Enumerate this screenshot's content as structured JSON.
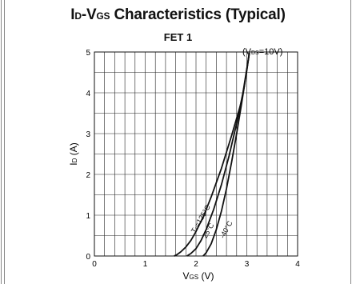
{
  "chart_data": {
    "type": "line",
    "title_parts": {
      "main_a": "I",
      "sub_a": "D",
      "main_b": "-V",
      "sub_b": "GS",
      "main_c": " Characteristics (Typical)"
    },
    "subtitle": "FET 1",
    "condition": {
      "prefix": "(V",
      "sub": "DS",
      "suffix": "=10V)"
    },
    "xlabel": {
      "main": "V",
      "sub": "GS",
      "suffix": "  (V)"
    },
    "ylabel": {
      "main": "I",
      "sub": "D",
      "suffix": "  (A)"
    },
    "xlim": [
      0,
      4
    ],
    "ylim": [
      0,
      5
    ],
    "x_ticks": [
      "0",
      "1",
      "2",
      "3",
      "4"
    ],
    "y_ticks": [
      "0",
      "1",
      "2",
      "3",
      "4",
      "5"
    ],
    "grid": true,
    "series": [
      {
        "name": "Tc=125°C",
        "label_parts": {
          "a": "T",
          "sub": "c",
          "b": "=125°C"
        },
        "x": [
          1.57,
          1.62,
          1.7,
          1.8,
          1.9,
          2.0,
          2.15,
          2.3,
          2.5,
          2.7,
          2.9,
          3.05
        ],
        "y": [
          0.0,
          0.03,
          0.1,
          0.22,
          0.38,
          0.6,
          0.98,
          1.45,
          2.15,
          2.95,
          3.8,
          4.98
        ]
      },
      {
        "name": "25°C",
        "label_parts": {
          "a": "25°C",
          "sub": "",
          "b": ""
        },
        "x": [
          1.82,
          1.9,
          2.0,
          2.1,
          2.2,
          2.35,
          2.5,
          2.65,
          2.8,
          2.95,
          3.05
        ],
        "y": [
          0.0,
          0.06,
          0.18,
          0.38,
          0.65,
          1.15,
          1.75,
          2.45,
          3.25,
          4.15,
          4.98
        ]
      },
      {
        "name": "-40°C",
        "label_parts": {
          "a": "-40°C",
          "sub": "",
          "b": ""
        },
        "x": [
          2.14,
          2.2,
          2.3,
          2.4,
          2.5,
          2.6,
          2.7,
          2.8,
          2.9,
          3.0,
          3.05
        ],
        "y": [
          0.0,
          0.08,
          0.3,
          0.65,
          1.1,
          1.65,
          2.3,
          3.0,
          3.75,
          4.55,
          4.98
        ]
      }
    ]
  }
}
